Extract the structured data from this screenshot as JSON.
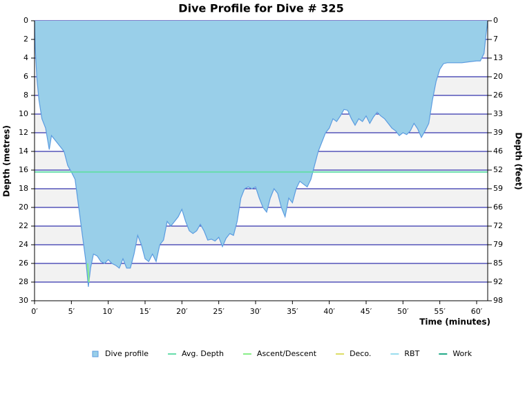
{
  "chart_data": {
    "type": "area",
    "title": "Dive Profile for Dive # 325",
    "xlabel": "Time (minutes)",
    "ylabel": "Depth (metres)",
    "y2label": "Depth (feet)",
    "xlim": [
      0,
      61.5
    ],
    "ylim": [
      0,
      30
    ],
    "y_inverted": true,
    "y2lim": [
      0,
      98.43
    ],
    "xticks": [
      {
        "value": 0,
        "label": "0′"
      },
      {
        "value": 5,
        "label": "5′"
      },
      {
        "value": 10,
        "label": "10′"
      },
      {
        "value": 15,
        "label": "15′"
      },
      {
        "value": 20,
        "label": "20′"
      },
      {
        "value": 25,
        "label": "25′"
      },
      {
        "value": 30,
        "label": "30′"
      },
      {
        "value": 35,
        "label": "35′"
      },
      {
        "value": 40,
        "label": "40′"
      },
      {
        "value": 45,
        "label": "45′"
      },
      {
        "value": 50,
        "label": "50′"
      },
      {
        "value": 55,
        "label": "55′"
      },
      {
        "value": 60,
        "label": "60′"
      }
    ],
    "yticks": [
      0,
      2,
      4,
      6,
      8,
      10,
      12,
      14,
      16,
      18,
      20,
      22,
      24,
      26,
      28,
      30
    ],
    "y2ticks": [
      0,
      {
        "value": 6.56,
        "label": "7"
      },
      {
        "value": 13.12,
        "label": "13"
      },
      {
        "value": 19.69,
        "label": "20"
      },
      {
        "value": 26.25,
        "label": "26"
      },
      {
        "value": 32.81,
        "label": "33"
      },
      {
        "value": 39.37,
        "label": "39"
      },
      {
        "value": 45.93,
        "label": "46"
      },
      {
        "value": 52.49,
        "label": "52"
      },
      {
        "value": 59.06,
        "label": "59"
      },
      {
        "value": 65.62,
        "label": "66"
      },
      {
        "value": 72.18,
        "label": "72"
      },
      {
        "value": 78.74,
        "label": "79"
      },
      {
        "value": 85.3,
        "label": "85"
      },
      {
        "value": 91.86,
        "label": "92"
      },
      {
        "value": 98.43,
        "label": "98"
      }
    ],
    "grid": true,
    "grid_color": "#000099",
    "band_color": "#f2f2f2",
    "legend": "bottom",
    "x": [
      0,
      0.1,
      0.3,
      0.6,
      1,
      1.5,
      2,
      2.3,
      3,
      4,
      4.5,
      5,
      5.5,
      6,
      6.5,
      7,
      7.3,
      7.6,
      8,
      8.5,
      9,
      9.5,
      10,
      10.5,
      11,
      11.5,
      12,
      12.5,
      13,
      13.5,
      14,
      14.5,
      15,
      15.5,
      16,
      16.5,
      17,
      17.5,
      18,
      18.5,
      19,
      19.5,
      20,
      20.5,
      21,
      21.5,
      22,
      22.5,
      23,
      23.5,
      24,
      24.5,
      25,
      25.5,
      26,
      26.5,
      27,
      27.5,
      28,
      28.5,
      29,
      29.5,
      30,
      30.5,
      31,
      31.5,
      32,
      32.5,
      33,
      33.5,
      34,
      34.5,
      35,
      35.5,
      36,
      36.5,
      37,
      37.5,
      38,
      38.5,
      39,
      39.5,
      40,
      40.5,
      41,
      41.5,
      42,
      42.5,
      43,
      43.5,
      44,
      44.5,
      45,
      45.5,
      46,
      46.5,
      47,
      47.5,
      48,
      48.5,
      49,
      49.5,
      50,
      50.5,
      51,
      51.5,
      52,
      52.5,
      53,
      53.5,
      54,
      54.5,
      55,
      55.5,
      56,
      57,
      58,
      59,
      60,
      60.5,
      61,
      61.2,
      61.5
    ],
    "series": [
      {
        "name": "Dive profile",
        "color": "#99cfe9",
        "stroke": "#5b9be0",
        "values": [
          0,
          3,
          6,
          8.5,
          10.5,
          11.5,
          13.8,
          12.3,
          13,
          14,
          15.5,
          16.2,
          17,
          20,
          23,
          26,
          28.5,
          26.5,
          25,
          25.2,
          25.8,
          26,
          25.6,
          26,
          26.2,
          26.5,
          25.5,
          26.5,
          26.5,
          25,
          23,
          24,
          25.5,
          25.8,
          25,
          25.8,
          24,
          23.5,
          21.5,
          22,
          21.5,
          21,
          20.2,
          21.5,
          22.5,
          22.8,
          22.5,
          21.8,
          22.5,
          23.5,
          23.4,
          23.6,
          23.2,
          24.2,
          23.3,
          22.8,
          23,
          21.5,
          19,
          18,
          17.8,
          18,
          17.8,
          19,
          20,
          20.5,
          19,
          18,
          18.5,
          20,
          21,
          19,
          19.5,
          18,
          17.2,
          17.5,
          17.8,
          17,
          15.5,
          14,
          13,
          12,
          11.5,
          10.5,
          10.8,
          10.2,
          9.5,
          9.6,
          10.5,
          11.2,
          10.5,
          10.8,
          10.2,
          11,
          10.3,
          9.8,
          10.2,
          10.5,
          11,
          11.5,
          11.8,
          12.3,
          12,
          12.2,
          11.8,
          11,
          11.6,
          12.5,
          11.8,
          11,
          8.5,
          6.5,
          5.2,
          4.6,
          4.5,
          4.5,
          4.5,
          4.4,
          4.3,
          4.3,
          3.5,
          2,
          0
        ]
      },
      {
        "name": "Avg. Depth",
        "color": "#66ddaa",
        "value": 16.2
      },
      {
        "name": "Ascent/Descent",
        "color": "#88ee88",
        "x": [
          7.2,
          7.4
        ],
        "values": [
          26,
          28
        ]
      },
      {
        "name": "Deco.",
        "color": "#dddd66"
      },
      {
        "name": "RBT",
        "color": "#99ddee"
      },
      {
        "name": "Work",
        "color": "#22aa88"
      }
    ]
  }
}
